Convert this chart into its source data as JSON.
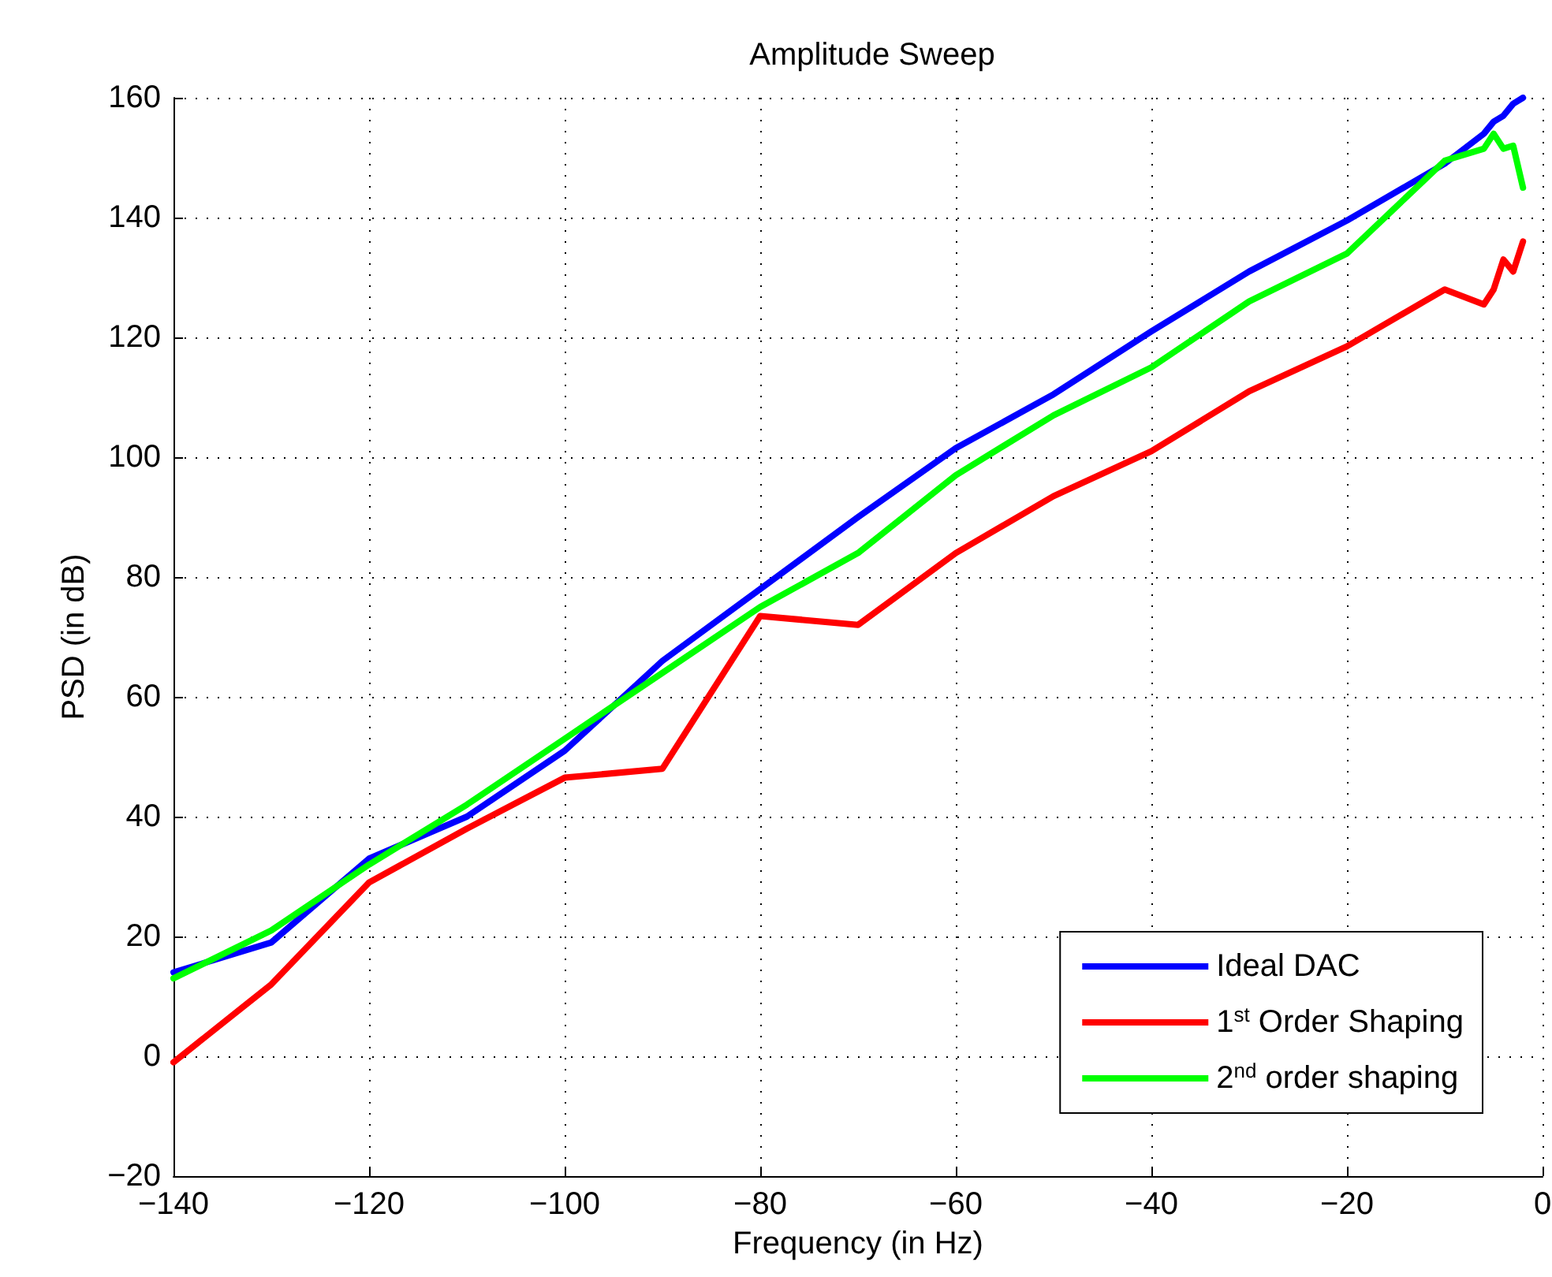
{
  "chart_data": {
    "type": "line",
    "title": "Amplitude Sweep",
    "xlabel": "Frequency (in Hz)",
    "ylabel": "PSD (in dB)",
    "x": [
      -140,
      -130,
      -120,
      -110,
      -100,
      -90,
      -80,
      -70,
      -60,
      -50,
      -40,
      -30,
      -20,
      -10,
      -6,
      -5,
      -4,
      -3,
      -2
    ],
    "series": [
      {
        "name": "Ideal DAC",
        "color": "#0000ff",
        "values": [
          14,
          19,
          33,
          40,
          51,
          66,
          78,
          90,
          101.5,
          110.5,
          121,
          131,
          139.5,
          149,
          154,
          156,
          157,
          159,
          160
        ]
      },
      {
        "name": "1$^{st}$ Order Shaping",
        "color": "#ff0000",
        "values": [
          -1,
          12,
          29,
          38,
          46.5,
          48,
          73.5,
          72,
          84,
          93.5,
          101,
          111,
          118.5,
          128,
          125.5,
          128,
          133,
          131,
          136
        ]
      },
      {
        "name": "2$^{nd}$ order shaping",
        "color": "#00ff00",
        "values": [
          13,
          21,
          32,
          42,
          53,
          64,
          75,
          84,
          97,
          107,
          115,
          126,
          134,
          149.5,
          151.5,
          154,
          151.5,
          152,
          145
        ]
      }
    ],
    "xlim": [
      -140,
      0
    ],
    "xticks": [
      -140,
      -120,
      -100,
      -80,
      -60,
      -40,
      -20,
      0
    ],
    "ylim": [
      -20,
      160
    ],
    "yticks": [
      -20,
      0,
      20,
      40,
      60,
      80,
      100,
      120,
      140,
      160
    ],
    "grid": true,
    "legend": "bottom right",
    "marker": "none",
    "line_style": "solid"
  }
}
